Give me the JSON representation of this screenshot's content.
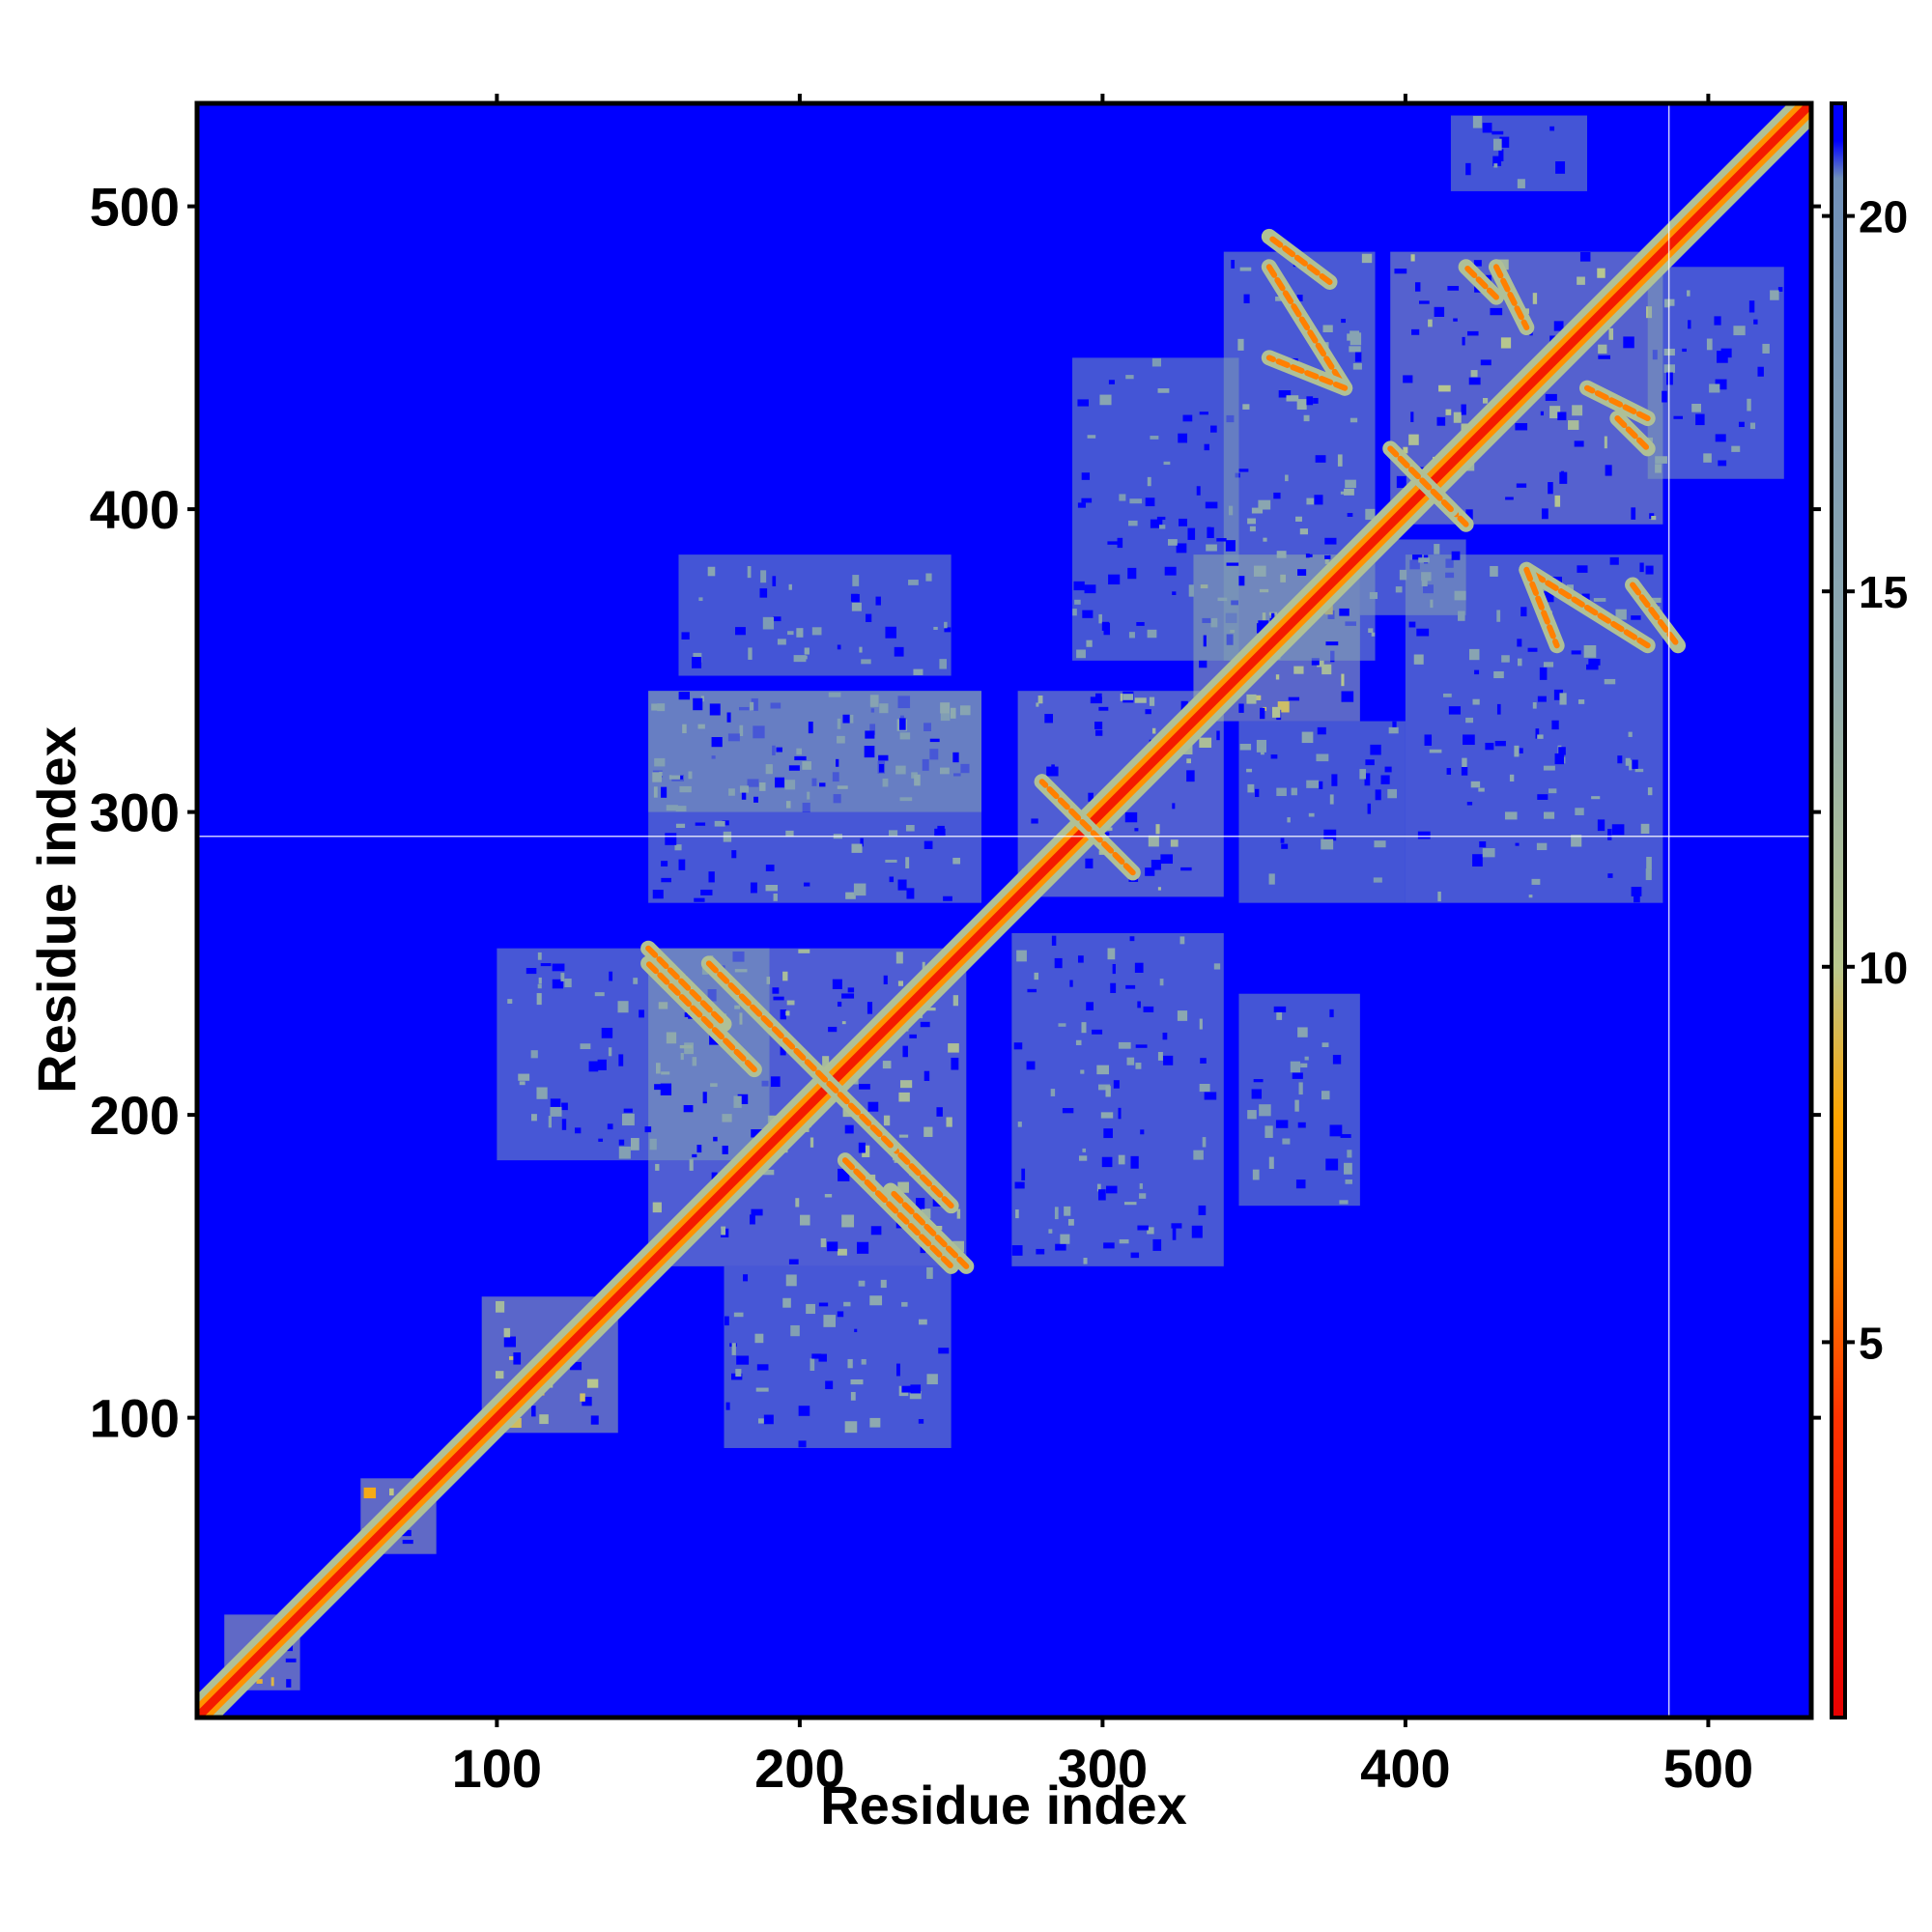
{
  "chart_data": {
    "type": "heatmap",
    "title": "",
    "xlabel": "Residue index",
    "ylabel": "Residue index",
    "xlim": [
      1,
      534
    ],
    "ylim": [
      1,
      534
    ],
    "x_ticks": [
      100,
      200,
      300,
      400,
      500
    ],
    "x_tick_labels": [
      "100",
      "200",
      "300",
      "400",
      "500"
    ],
    "y_ticks": [
      100,
      200,
      300,
      400,
      500
    ],
    "y_tick_labels": [
      "100",
      "200",
      "300",
      "400",
      "500"
    ],
    "colorbar": {
      "range": [
        0,
        21.5
      ],
      "ticks": [
        5,
        10,
        15,
        20
      ],
      "tick_labels": [
        "5",
        "10",
        "15",
        "20"
      ],
      "colors": {
        "low": "#e80000",
        "mid_low": "#ff6a00",
        "mid": "#ffa500",
        "mid_high": "#b9c78e",
        "high": "#7f9fb7",
        "background": "#0000ff"
      },
      "stops": [
        {
          "value": 0,
          "color": "#e80000"
        },
        {
          "value": 4,
          "color": "#ff3300"
        },
        {
          "value": 6,
          "color": "#ff8000"
        },
        {
          "value": 8,
          "color": "#ffa500"
        },
        {
          "value": 10,
          "color": "#b9c78e"
        },
        {
          "value": 14,
          "color": "#8faab0"
        },
        {
          "value": 20.5,
          "color": "#7090b8"
        },
        {
          "value": 21,
          "color": "#0000ff"
        }
      ]
    },
    "diagonal_band": {
      "value": 2
    },
    "contact_blocks": [
      {
        "x": [
          150,
          255
        ],
        "y": [
          150,
          255
        ],
        "value": 14
      },
      {
        "x": [
          272,
          340
        ],
        "y": [
          272,
          340
        ],
        "value": 14
      },
      {
        "x": [
          330,
          385
        ],
        "y": [
          330,
          385
        ],
        "value": 12
      },
      {
        "x": [
          395,
          485
        ],
        "y": [
          395,
          485
        ],
        "value": 13
      },
      {
        "x": [
          95,
          140
        ],
        "y": [
          95,
          140
        ],
        "value": 12
      },
      {
        "x": [
          55,
          80
        ],
        "y": [
          55,
          80
        ],
        "value": 11
      },
      {
        "x": [
          10,
          35
        ],
        "y": [
          10,
          35
        ],
        "value": 11
      },
      {
        "x": [
          100,
          190
        ],
        "y": [
          185,
          255
        ],
        "value": 17
      },
      {
        "x": [
          175,
          250
        ],
        "y": [
          90,
          150
        ],
        "value": 17
      },
      {
        "x": [
          150,
          260
        ],
        "y": [
          270,
          340
        ],
        "value": 17
      },
      {
        "x": [
          270,
          340
        ],
        "y": [
          150,
          260
        ],
        "value": 17
      },
      {
        "x": [
          160,
          250
        ],
        "y": [
          345,
          385
        ],
        "value": 18
      },
      {
        "x": [
          340,
          390
        ],
        "y": [
          350,
          485
        ],
        "value": 16
      },
      {
        "x": [
          290,
          345
        ],
        "y": [
          350,
          450
        ],
        "value": 18
      },
      {
        "x": [
          400,
          485
        ],
        "y": [
          270,
          385
        ],
        "value": 17
      },
      {
        "x": [
          345,
          400
        ],
        "y": [
          270,
          330
        ],
        "value": 18
      },
      {
        "x": [
          345,
          385
        ],
        "y": [
          170,
          240
        ],
        "value": 18
      },
      {
        "x": [
          480,
          525
        ],
        "y": [
          410,
          480
        ],
        "value": 17
      },
      {
        "x": [
          415,
          460
        ],
        "y": [
          505,
          530
        ],
        "value": 18
      },
      {
        "x": [
          150,
          260
        ],
        "y": [
          300,
          340
        ],
        "value": 17
      },
      {
        "x": [
          385,
          420
        ],
        "y": [
          365,
          390
        ],
        "value": 17
      }
    ],
    "off_diagonal_strands": [
      {
        "from": [
          150,
          255
        ],
        "to": [
          175,
          230
        ],
        "value": 6
      },
      {
        "from": [
          190,
          230
        ],
        "to": [
          250,
          170
        ],
        "value": 6
      },
      {
        "from": [
          215,
          185
        ],
        "to": [
          250,
          150
        ],
        "value": 6
      },
      {
        "from": [
          280,
          310
        ],
        "to": [
          310,
          280
        ],
        "value": 6
      },
      {
        "from": [
          355,
          480
        ],
        "to": [
          380,
          440
        ],
        "value": 6
      },
      {
        "from": [
          430,
          480
        ],
        "to": [
          440,
          460
        ],
        "value": 6
      },
      {
        "from": [
          470,
          430
        ],
        "to": [
          480,
          420
        ],
        "value": 6
      },
      {
        "from": [
          440,
          380
        ],
        "to": [
          450,
          355
        ],
        "value": 6
      },
      {
        "from": [
          475,
          375
        ],
        "to": [
          490,
          355
        ],
        "value": 6
      },
      {
        "from": [
          400,
          415
        ],
        "to": [
          420,
          395
        ],
        "value": 6
      }
    ],
    "grid_lines": [
      {
        "axis": "x",
        "value": 487
      },
      {
        "axis": "y",
        "value": 292
      }
    ],
    "grid": false,
    "legend": "right"
  }
}
